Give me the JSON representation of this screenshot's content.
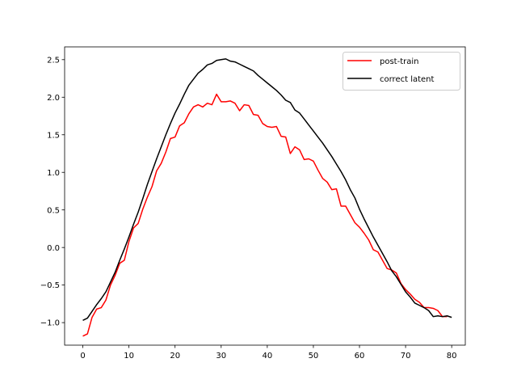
{
  "chart_data": {
    "type": "line",
    "title": "",
    "xlabel": "",
    "ylabel": "",
    "xlim": [
      -3.95,
      82.95
    ],
    "ylim": [
      -1.3,
      2.67
    ],
    "xticks": [
      0,
      10,
      20,
      30,
      40,
      50,
      60,
      70,
      80
    ],
    "yticks": [
      -1.0,
      -0.5,
      0.0,
      0.5,
      1.0,
      1.5,
      2.0,
      2.5
    ],
    "xtick_labels": [
      "0",
      "10",
      "20",
      "30",
      "40",
      "50",
      "60",
      "70",
      "80"
    ],
    "ytick_labels": [
      "−1.0",
      "−0.5",
      "0.0",
      "0.5",
      "1.0",
      "1.5",
      "2.0",
      "2.5"
    ],
    "grid": false,
    "legend_position": "top-right",
    "series": [
      {
        "name": "post-train",
        "color": "#ff0000",
        "values": [
          -1.18,
          -1.15,
          -0.93,
          -0.82,
          -0.8,
          -0.7,
          -0.5,
          -0.37,
          -0.21,
          -0.17,
          0.08,
          0.26,
          0.32,
          0.51,
          0.67,
          0.81,
          1.02,
          1.12,
          1.27,
          1.45,
          1.47,
          1.62,
          1.66,
          1.78,
          1.87,
          1.9,
          1.87,
          1.92,
          1.9,
          2.04,
          1.94,
          1.94,
          1.95,
          1.92,
          1.82,
          1.9,
          1.89,
          1.77,
          1.76,
          1.65,
          1.61,
          1.6,
          1.61,
          1.48,
          1.47,
          1.25,
          1.34,
          1.3,
          1.17,
          1.18,
          1.15,
          1.03,
          0.92,
          0.87,
          0.77,
          0.78,
          0.55,
          0.55,
          0.44,
          0.33,
          0.27,
          0.19,
          0.1,
          -0.03,
          -0.06,
          -0.17,
          -0.28,
          -0.3,
          -0.34,
          -0.48,
          -0.56,
          -0.62,
          -0.69,
          -0.73,
          -0.8,
          -0.8,
          -0.81,
          -0.84,
          -0.92,
          -0.92
        ]
      },
      {
        "name": "correct latent",
        "color": "#000000",
        "values": [
          -0.97,
          -0.94,
          -0.85,
          -0.76,
          -0.68,
          -0.59,
          -0.46,
          -0.33,
          -0.17,
          -0.02,
          0.14,
          0.31,
          0.47,
          0.65,
          0.84,
          1.01,
          1.18,
          1.34,
          1.5,
          1.65,
          1.79,
          1.91,
          2.04,
          2.16,
          2.24,
          2.32,
          2.37,
          2.43,
          2.45,
          2.49,
          2.5,
          2.51,
          2.48,
          2.47,
          2.44,
          2.41,
          2.38,
          2.35,
          2.29,
          2.24,
          2.19,
          2.14,
          2.09,
          2.03,
          1.96,
          1.93,
          1.83,
          1.79,
          1.71,
          1.63,
          1.55,
          1.47,
          1.39,
          1.3,
          1.21,
          1.11,
          1.01,
          0.9,
          0.77,
          0.66,
          0.51,
          0.38,
          0.26,
          0.14,
          0.03,
          -0.08,
          -0.19,
          -0.31,
          -0.39,
          -0.49,
          -0.59,
          -0.66,
          -0.74,
          -0.77,
          -0.8,
          -0.84,
          -0.92,
          -0.91,
          -0.92,
          -0.91,
          -0.93
        ]
      }
    ]
  }
}
